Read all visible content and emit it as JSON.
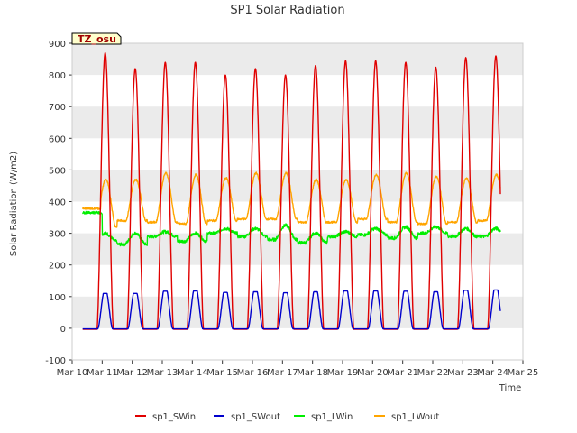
{
  "chart_data": {
    "type": "line",
    "title": "SP1 Solar Radiation",
    "xlabel": "Time",
    "ylabel": "Solar Radiation (W/m2)",
    "tag": "TZ_osu",
    "xlim": [
      "Mar 10",
      "Mar 25"
    ],
    "ylim": [
      -100,
      900
    ],
    "yticks": [
      -100,
      0,
      100,
      200,
      300,
      400,
      500,
      600,
      700,
      800,
      900
    ],
    "xticks": [
      "Mar 10",
      "Mar 11",
      "Mar 12",
      "Mar 13",
      "Mar 14",
      "Mar 15",
      "Mar 16",
      "Mar 17",
      "Mar 18",
      "Mar 19",
      "Mar 20",
      "Mar 21",
      "Mar 22",
      "Mar 23",
      "Mar 24",
      "Mar 25"
    ],
    "grid": "horizontal bands",
    "legend_position": "bottom",
    "x_start": "Mar 10.35",
    "x_end": "Mar 24.25",
    "daily_x": [
      "Mar 11",
      "Mar 12",
      "Mar 13",
      "Mar 14",
      "Mar 15",
      "Mar 16",
      "Mar 17",
      "Mar 18",
      "Mar 19",
      "Mar 20",
      "Mar 21",
      "Mar 22",
      "Mar 23",
      "Mar 24"
    ],
    "series": [
      {
        "name": "sp1_SWin",
        "color": "#e00000",
        "daily_peak": [
          870,
          820,
          840,
          840,
          800,
          820,
          800,
          830,
          845,
          845,
          840,
          825,
          855,
          860
        ],
        "night_value": -3
      },
      {
        "name": "sp1_SWout",
        "color": "#0000cc",
        "daily_peak": [
          110,
          110,
          117,
          118,
          113,
          115,
          112,
          115,
          118,
          118,
          117,
          115,
          120,
          121
        ],
        "night_value": -2
      },
      {
        "name": "sp1_LWin",
        "color": "#00ee00",
        "daily_day": [
          300,
          300,
          305,
          300,
          315,
          315,
          325,
          300,
          305,
          315,
          320,
          320,
          315,
          315
        ],
        "daily_night": [
          275,
          265,
          290,
          275,
          300,
          290,
          280,
          270,
          290,
          295,
          285,
          300,
          290,
          290
        ]
      },
      {
        "name": "sp1_LWout",
        "color": "#ffa500",
        "daily_peak": [
          470,
          470,
          490,
          485,
          475,
          490,
          490,
          470,
          470,
          485,
          490,
          480,
          475,
          485
        ],
        "daily_night": [
          320,
          340,
          335,
          330,
          340,
          345,
          345,
          335,
          335,
          345,
          335,
          330,
          335,
          340
        ]
      }
    ]
  }
}
